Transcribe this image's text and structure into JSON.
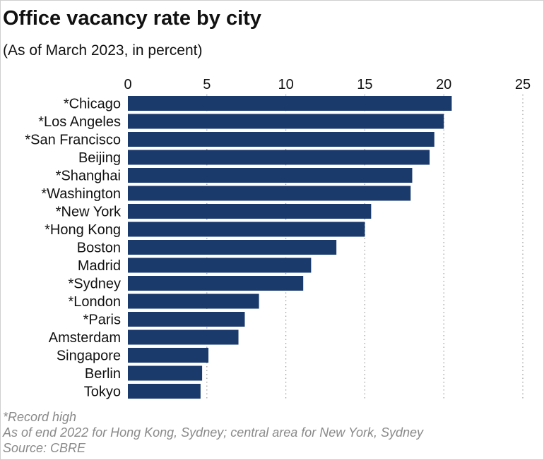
{
  "title": "Office vacancy rate by city",
  "subtitle": "(As of March 2023, in percent)",
  "notes": [
    "*Record high",
    "As of end 2022 for Hong Kong, Sydney; central area for New York, Sydney",
    "Source: CBRE"
  ],
  "chart_data": {
    "type": "bar",
    "orientation": "horizontal",
    "title": "Office vacancy rate by city",
    "subtitle": "(As of March 2023, in percent)",
    "categories": [
      "*Chicago",
      "*Los Angeles",
      "*San Francisco",
      "Beijing",
      "*Shanghai",
      "*Washington",
      "*New York",
      "*Hong Kong",
      "Boston",
      "Madrid",
      "*Sydney",
      "*London",
      "*Paris",
      "Amsterdam",
      "Singapore",
      "Berlin",
      "Tokyo"
    ],
    "values": [
      20.5,
      20.0,
      19.4,
      19.1,
      18.0,
      17.9,
      15.4,
      15.0,
      13.2,
      11.6,
      11.1,
      8.3,
      7.4,
      7.0,
      5.1,
      4.7,
      4.6
    ],
    "xlim": [
      0,
      25
    ],
    "ticks": [
      0,
      5,
      10,
      15,
      20,
      25
    ],
    "grid": true,
    "bar_color": "#1a3a6c",
    "grid_color": "#9a9a9a",
    "xlabel": "",
    "ylabel": ""
  }
}
